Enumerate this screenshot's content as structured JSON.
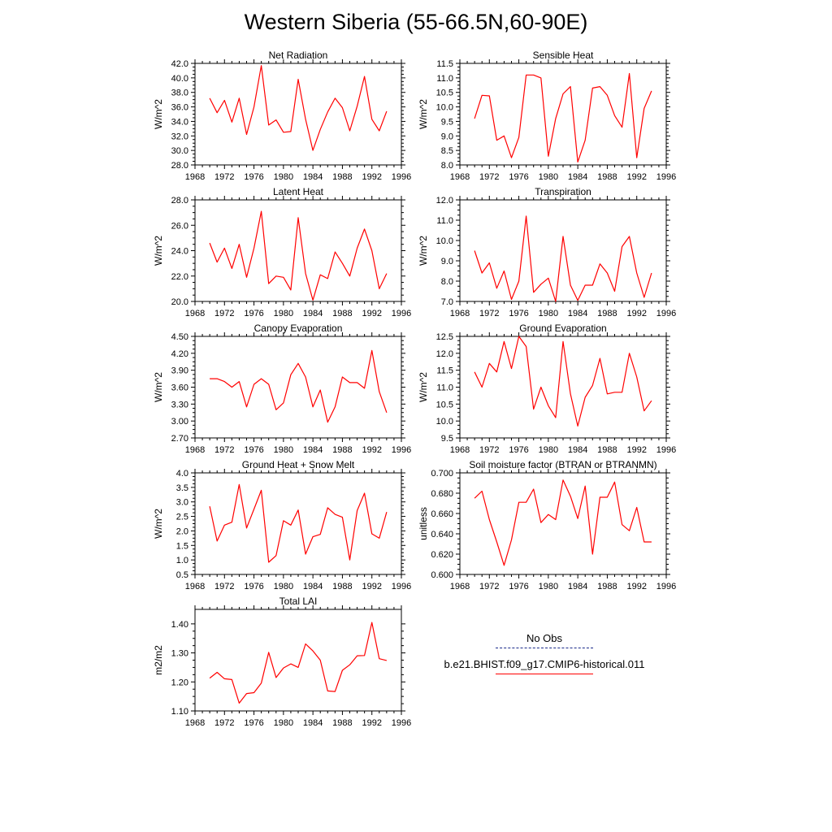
{
  "title": "Western Siberia (55-66.5N,60-90E)",
  "legend": {
    "entries": [
      {
        "label": "No Obs",
        "color": "#1a2a8a",
        "style": "dashed"
      },
      {
        "label": "b.e21.BHIST.f09_g17.CMIP6-historical.011",
        "color": "#ff0000",
        "style": "solid"
      }
    ]
  },
  "chart_data": [
    {
      "type": "line",
      "title": "Net Radiation",
      "ylabel": "W/m^2",
      "xlim": [
        1968,
        1996
      ],
      "ylim": [
        28.0,
        42.0
      ],
      "xticks": [
        1968,
        1972,
        1976,
        1980,
        1984,
        1988,
        1992,
        1996
      ],
      "yticks": [
        "28.0",
        "30.0",
        "32.0",
        "34.0",
        "36.0",
        "38.0",
        "40.0",
        "42.0"
      ],
      "x": [
        1970,
        1971,
        1972,
        1973,
        1974,
        1975,
        1976,
        1977,
        1978,
        1979,
        1980,
        1981,
        1982,
        1983,
        1984,
        1985,
        1986,
        1987,
        1988,
        1989,
        1990,
        1991,
        1992,
        1993,
        1994
      ],
      "series": [
        {
          "color": "#ff0000",
          "values": [
            37.2,
            35.2,
            36.9,
            33.9,
            37.2,
            32.2,
            36.0,
            41.7,
            33.5,
            34.2,
            32.5,
            32.6,
            39.8,
            34.3,
            30.0,
            32.9,
            35.3,
            37.2,
            35.9,
            32.7,
            36.1,
            40.2,
            34.3,
            32.7,
            35.4
          ]
        }
      ]
    },
    {
      "type": "line",
      "title": "Sensible Heat",
      "ylabel": "W/m^2",
      "xlim": [
        1968,
        1996
      ],
      "ylim": [
        8.0,
        11.5
      ],
      "xticks": [
        1968,
        1972,
        1976,
        1980,
        1984,
        1988,
        1992,
        1996
      ],
      "yticks": [
        "8.0",
        "8.5",
        "9.0",
        "9.5",
        "10.0",
        "10.5",
        "11.0",
        "11.5"
      ],
      "x": [
        1970,
        1971,
        1972,
        1973,
        1974,
        1975,
        1976,
        1977,
        1978,
        1979,
        1980,
        1981,
        1982,
        1983,
        1984,
        1985,
        1986,
        1987,
        1988,
        1989,
        1990,
        1991,
        1992,
        1993,
        1994
      ],
      "series": [
        {
          "color": "#ff0000",
          "values": [
            9.6,
            10.4,
            10.38,
            8.85,
            9.0,
            8.25,
            8.95,
            11.1,
            11.1,
            11.0,
            8.3,
            9.6,
            10.45,
            10.7,
            8.1,
            8.85,
            10.65,
            10.7,
            10.4,
            9.7,
            9.3,
            11.15,
            8.25,
            9.95,
            10.55
          ]
        }
      ]
    },
    {
      "type": "line",
      "title": "Latent Heat",
      "ylabel": "W/m^2",
      "xlim": [
        1968,
        1996
      ],
      "ylim": [
        20.0,
        28.0
      ],
      "xticks": [
        1968,
        1972,
        1976,
        1980,
        1984,
        1988,
        1992,
        1996
      ],
      "yticks": [
        "20.0",
        "22.0",
        "24.0",
        "26.0",
        "28.0"
      ],
      "x": [
        1970,
        1971,
        1972,
        1973,
        1974,
        1975,
        1976,
        1977,
        1978,
        1979,
        1980,
        1981,
        1982,
        1983,
        1984,
        1985,
        1986,
        1987,
        1988,
        1989,
        1990,
        1991,
        1992,
        1993,
        1994
      ],
      "series": [
        {
          "color": "#ff0000",
          "values": [
            24.6,
            23.1,
            24.2,
            22.6,
            24.5,
            21.9,
            24.2,
            27.1,
            21.4,
            22.0,
            21.9,
            20.9,
            26.6,
            22.2,
            20.1,
            22.1,
            21.8,
            23.9,
            23.0,
            22.0,
            24.2,
            25.7,
            24.0,
            21.0,
            22.2
          ]
        }
      ]
    },
    {
      "type": "line",
      "title": "Transpiration",
      "ylabel": "W/m^2",
      "xlim": [
        1968,
        1996
      ],
      "ylim": [
        7.0,
        12.0
      ],
      "xticks": [
        1968,
        1972,
        1976,
        1980,
        1984,
        1988,
        1992,
        1996
      ],
      "yticks": [
        "7.0",
        "8.0",
        "9.0",
        "10.0",
        "11.0",
        "12.0"
      ],
      "x": [
        1970,
        1971,
        1972,
        1973,
        1974,
        1975,
        1976,
        1977,
        1978,
        1979,
        1980,
        1981,
        1982,
        1983,
        1984,
        1985,
        1986,
        1987,
        1988,
        1989,
        1990,
        1991,
        1992,
        1993,
        1994
      ],
      "series": [
        {
          "color": "#ff0000",
          "values": [
            9.5,
            8.4,
            8.9,
            7.65,
            8.5,
            7.1,
            8.0,
            11.2,
            7.45,
            7.85,
            8.15,
            7.0,
            10.2,
            7.8,
            7.05,
            7.8,
            7.8,
            8.85,
            8.4,
            7.5,
            9.7,
            10.2,
            8.4,
            7.2,
            8.4
          ]
        }
      ]
    },
    {
      "type": "line",
      "title": "Canopy Evaporation",
      "ylabel": "W/m^2",
      "xlim": [
        1968,
        1996
      ],
      "ylim": [
        2.7,
        4.5
      ],
      "xticks": [
        1968,
        1972,
        1976,
        1980,
        1984,
        1988,
        1992,
        1996
      ],
      "yticks": [
        "2.70",
        "3.00",
        "3.30",
        "3.60",
        "3.90",
        "4.20",
        "4.50"
      ],
      "x": [
        1970,
        1971,
        1972,
        1973,
        1974,
        1975,
        1976,
        1977,
        1978,
        1979,
        1980,
        1981,
        1982,
        1983,
        1984,
        1985,
        1986,
        1987,
        1988,
        1989,
        1990,
        1991,
        1992,
        1993,
        1994
      ],
      "series": [
        {
          "color": "#ff0000",
          "values": [
            3.75,
            3.75,
            3.7,
            3.6,
            3.7,
            3.25,
            3.65,
            3.75,
            3.65,
            3.2,
            3.32,
            3.82,
            4.02,
            3.78,
            3.25,
            3.55,
            2.98,
            3.25,
            3.78,
            3.68,
            3.68,
            3.58,
            4.25,
            3.52,
            3.15
          ]
        }
      ]
    },
    {
      "type": "line",
      "title": "Ground Evaporation",
      "ylabel": "W/m^2",
      "xlim": [
        1968,
        1996
      ],
      "ylim": [
        9.5,
        12.5
      ],
      "xticks": [
        1968,
        1972,
        1976,
        1980,
        1984,
        1988,
        1992,
        1996
      ],
      "yticks": [
        "9.5",
        "10.0",
        "10.5",
        "11.0",
        "11.5",
        "12.0",
        "12.5"
      ],
      "x": [
        1970,
        1971,
        1972,
        1973,
        1974,
        1975,
        1976,
        1977,
        1978,
        1979,
        1980,
        1981,
        1982,
        1983,
        1984,
        1985,
        1986,
        1987,
        1988,
        1989,
        1990,
        1991,
        1992,
        1993,
        1994
      ],
      "series": [
        {
          "color": "#ff0000",
          "values": [
            11.45,
            11.0,
            11.7,
            11.45,
            12.35,
            11.55,
            12.5,
            12.2,
            10.35,
            11.0,
            10.45,
            10.1,
            12.35,
            10.8,
            9.85,
            10.7,
            11.05,
            11.85,
            10.8,
            10.85,
            10.85,
            12.0,
            11.3,
            10.3,
            10.6
          ]
        }
      ]
    },
    {
      "type": "line",
      "title": "Ground Heat + Snow Melt",
      "ylabel": "W/m^2",
      "xlim": [
        1968,
        1996
      ],
      "ylim": [
        0.5,
        4.0
      ],
      "xticks": [
        1968,
        1972,
        1976,
        1980,
        1984,
        1988,
        1992,
        1996
      ],
      "yticks": [
        "0.5",
        "1.0",
        "1.5",
        "2.0",
        "2.5",
        "3.0",
        "3.5",
        "4.0"
      ],
      "x": [
        1970,
        1971,
        1972,
        1973,
        1974,
        1975,
        1976,
        1977,
        1978,
        1979,
        1980,
        1981,
        1982,
        1983,
        1984,
        1985,
        1986,
        1987,
        1988,
        1989,
        1990,
        1991,
        1992,
        1993,
        1994
      ],
      "series": [
        {
          "color": "#ff0000",
          "values": [
            2.85,
            1.65,
            2.2,
            2.3,
            3.6,
            2.1,
            2.75,
            3.4,
            0.92,
            1.15,
            2.35,
            2.2,
            2.72,
            1.2,
            1.8,
            1.88,
            2.8,
            2.57,
            2.47,
            1.0,
            2.7,
            3.3,
            1.9,
            1.75,
            2.65
          ]
        }
      ]
    },
    {
      "type": "line",
      "title": "Soil moisture factor (BTRAN or BTRANMN)",
      "ylabel": "unitless",
      "xlim": [
        1968,
        1996
      ],
      "ylim": [
        0.6,
        0.7
      ],
      "xticks": [
        1968,
        1972,
        1976,
        1980,
        1984,
        1988,
        1992,
        1996
      ],
      "yticks": [
        "0.600",
        "0.620",
        "0.640",
        "0.660",
        "0.680",
        "0.700"
      ],
      "x": [
        1970,
        1971,
        1972,
        1973,
        1974,
        1975,
        1976,
        1977,
        1978,
        1979,
        1980,
        1981,
        1982,
        1983,
        1984,
        1985,
        1986,
        1987,
        1988,
        1989,
        1990,
        1991,
        1992,
        1993,
        1994
      ],
      "series": [
        {
          "color": "#ff0000",
          "values": [
            0.675,
            0.682,
            0.654,
            0.632,
            0.609,
            0.634,
            0.671,
            0.671,
            0.684,
            0.651,
            0.659,
            0.654,
            0.693,
            0.677,
            0.655,
            0.687,
            0.62,
            0.676,
            0.676,
            0.691,
            0.649,
            0.643,
            0.666,
            0.632,
            0.632
          ]
        }
      ]
    },
    {
      "type": "line",
      "title": "Total LAI",
      "ylabel": "m2/m2",
      "xlim": [
        1968,
        1996
      ],
      "ylim": [
        1.1,
        1.45
      ],
      "xticks": [
        1968,
        1972,
        1976,
        1980,
        1984,
        1988,
        1992,
        1996
      ],
      "yticks": [
        "1.10",
        "1.20",
        "1.30",
        "1.40"
      ],
      "x": [
        1970,
        1971,
        1972,
        1973,
        1974,
        1975,
        1976,
        1977,
        1978,
        1979,
        1980,
        1981,
        1982,
        1983,
        1984,
        1985,
        1986,
        1987,
        1988,
        1989,
        1990,
        1991,
        1992,
        1993,
        1994
      ],
      "series": [
        {
          "color": "#ff0000",
          "values": [
            1.213,
            1.233,
            1.211,
            1.208,
            1.127,
            1.16,
            1.163,
            1.196,
            1.302,
            1.215,
            1.248,
            1.262,
            1.25,
            1.331,
            1.307,
            1.275,
            1.169,
            1.167,
            1.24,
            1.259,
            1.29,
            1.291,
            1.405,
            1.28,
            1.274
          ]
        }
      ]
    }
  ]
}
